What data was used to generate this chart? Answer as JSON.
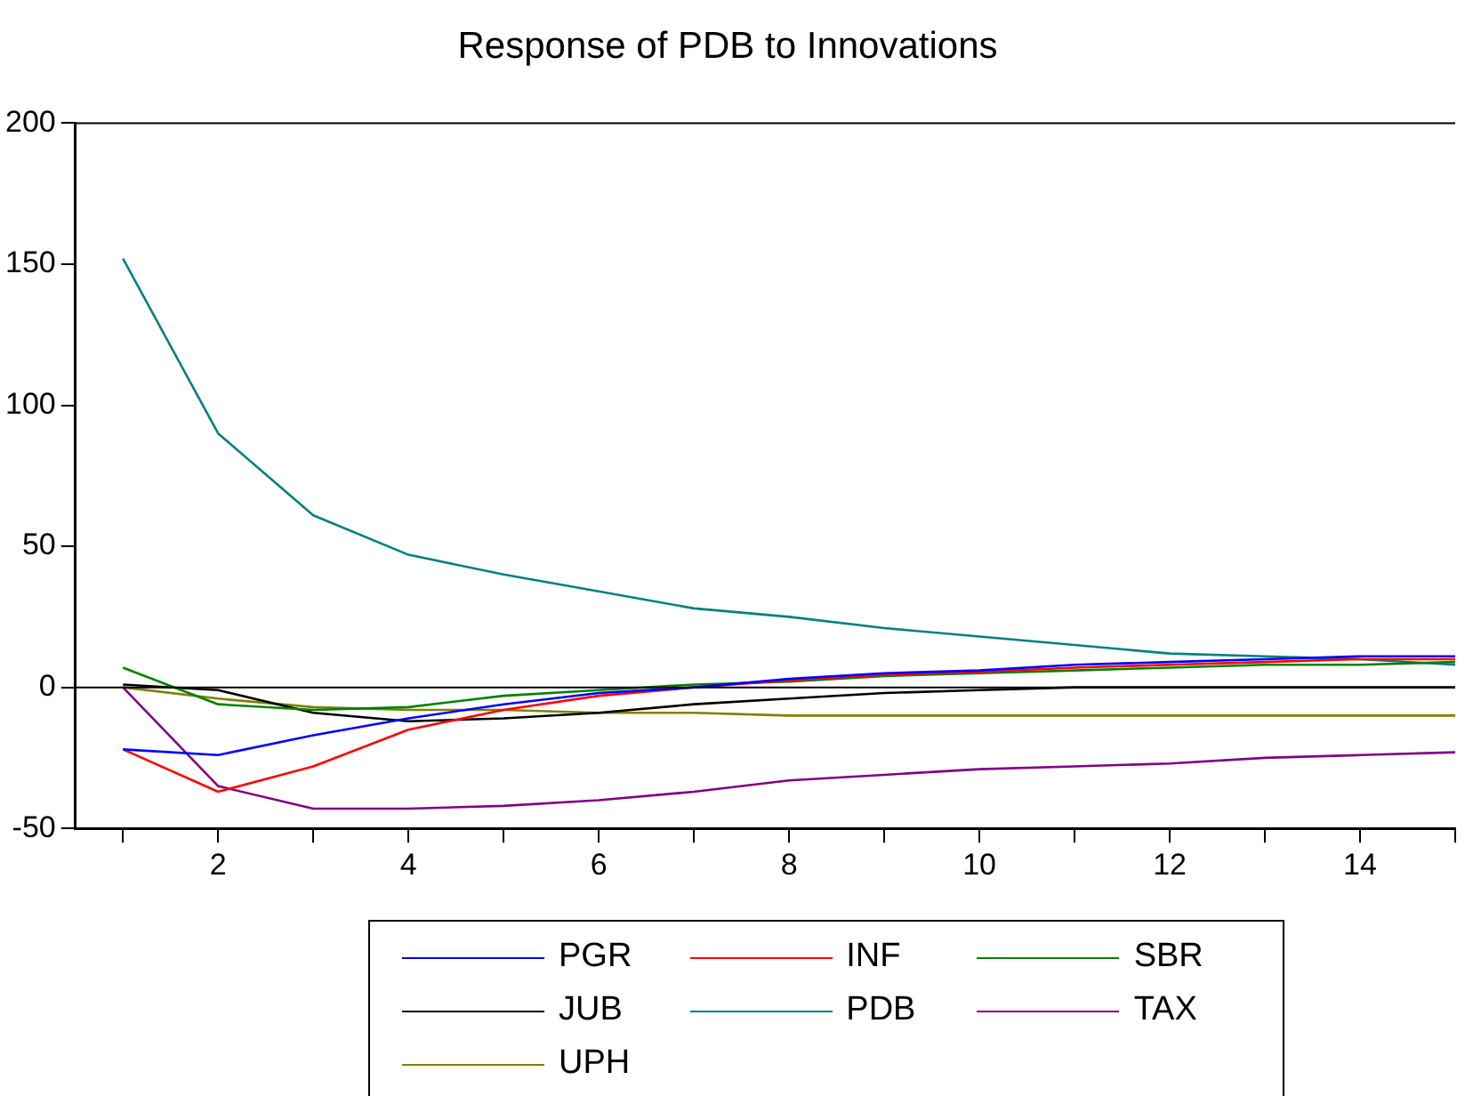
{
  "chart_data": {
    "type": "line",
    "title": "Response of PDB to Innovations",
    "x": [
      1,
      2,
      3,
      4,
      5,
      6,
      7,
      8,
      9,
      10,
      11,
      12,
      13,
      14,
      15
    ],
    "xlim": [
      0.5,
      15
    ],
    "xticks": [
      {
        "value": 1,
        "label": null
      },
      2,
      {
        "value": 3,
        "label": null
      },
      4,
      {
        "value": 5,
        "label": null
      },
      6,
      {
        "value": 7,
        "label": null
      },
      8,
      {
        "value": 9,
        "label": null
      },
      10,
      {
        "value": 11,
        "label": null
      },
      12,
      {
        "value": 13,
        "label": null
      },
      14,
      {
        "value": 15,
        "label": null
      }
    ],
    "ylim": [
      -50,
      200
    ],
    "yticks": [
      -50,
      0,
      50,
      100,
      150,
      200
    ],
    "grid": false,
    "legend": "bottom",
    "marker": "none",
    "line_style": "solid",
    "ref_lines": [
      {
        "axis": "y",
        "value": 0,
        "color": "#000000"
      }
    ],
    "series": [
      {
        "name": "PGR",
        "color": "#0000ff",
        "values": [
          -22,
          -24,
          -17,
          -11,
          -6,
          -2,
          0,
          3,
          5,
          6,
          8,
          9,
          10,
          11,
          11
        ]
      },
      {
        "name": "INF",
        "color": "#ff0000",
        "values": [
          -22,
          -37,
          -28,
          -15,
          -8,
          -3,
          0,
          2.5,
          4.5,
          5.5,
          7,
          8,
          9,
          10,
          10
        ]
      },
      {
        "name": "SBR",
        "color": "#008000",
        "values": [
          7,
          -6,
          -8,
          -7,
          -3,
          -1,
          1,
          2,
          4,
          5,
          6,
          7,
          8,
          8,
          9
        ]
      },
      {
        "name": "JUB",
        "color": "#000000",
        "values": [
          1,
          -1,
          -9,
          -12,
          -11,
          -9,
          -6,
          -4,
          -2,
          -1,
          0,
          0,
          0,
          0,
          0
        ]
      },
      {
        "name": "PDB",
        "color": "#008080",
        "values": [
          152,
          90,
          61,
          47,
          40,
          34,
          28,
          25,
          21,
          18,
          15,
          12,
          11,
          10,
          8
        ]
      },
      {
        "name": "TAX",
        "color": "#800080",
        "values": [
          0,
          -35,
          -43,
          -43,
          -42,
          -40,
          -37,
          -33,
          -31,
          -29,
          -28,
          -27,
          -25,
          -24,
          -23
        ]
      },
      {
        "name": "UPH",
        "color": "#808000",
        "values": [
          0,
          -4,
          -7,
          -8,
          -8,
          -9,
          -9,
          -10,
          -10,
          -10,
          -10,
          -10,
          -10,
          -10,
          -10
        ]
      }
    ]
  }
}
